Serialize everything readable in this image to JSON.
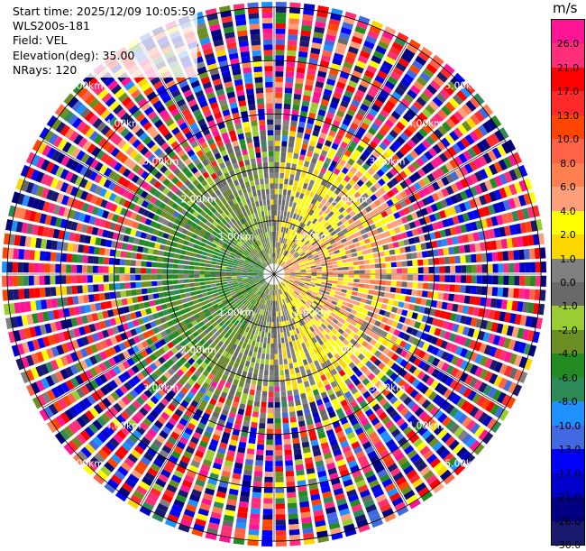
{
  "header": {
    "start_time": "Start time: 2025/12/09 10:05:59",
    "instrument": "WLS200s-181",
    "field": "Field: VEL",
    "elevation": "Elevation(deg): 35.00",
    "nrays": "NRays: 120"
  },
  "colorbar": {
    "unit": "m/s",
    "labels": [
      "26.0",
      "21.0",
      "17.0",
      "13.0",
      "10.0",
      "8.0",
      "6.0",
      "4.0",
      "2.0",
      "1.0",
      "0.0",
      "-1.0",
      "-2.0",
      "-4.0",
      "-6.0",
      "-8.0",
      "-10.0",
      "-13.0",
      "-17.0",
      "-21.0",
      "-26.0",
      "-30.0"
    ],
    "colors": [
      "#ff1493",
      "#ff2d7a",
      "#ff0000",
      "#ff2a2a",
      "#ff4500",
      "#ff6347",
      "#ff7f50",
      "#ffa07a",
      "#ffff00",
      "#ffd700",
      "#808080",
      "#696969",
      "#9acd32",
      "#6b8e23",
      "#228b22",
      "#2e8b57",
      "#1e90ff",
      "#4169e1",
      "#0000ff",
      "#0000cd",
      "#000080",
      "#191970"
    ]
  },
  "chart_data": {
    "type": "heatmap",
    "projection": "polar-ppi",
    "field": "VEL",
    "units": "m/s",
    "elevation_deg": 35.0,
    "n_rays": 120,
    "range_rings_km": [
      1.0,
      2.0,
      3.0,
      4.0,
      5.0
    ],
    "range_ring_labels": [
      "1.00km",
      "2.00km",
      "3.00km",
      "4.00km",
      "5.00km"
    ],
    "max_range_km": 5.1,
    "spokes_deg": [
      0,
      30,
      60,
      90,
      120,
      150,
      180,
      210,
      240,
      270,
      300,
      330
    ],
    "value_range": [
      -30.0,
      30.0
    ],
    "pattern": {
      "inner_east_velocity_ms": 5.0,
      "inner_west_velocity_ms": -5.0,
      "inner_zone_km": 2.0,
      "noise_beyond_km": 3.0
    }
  }
}
